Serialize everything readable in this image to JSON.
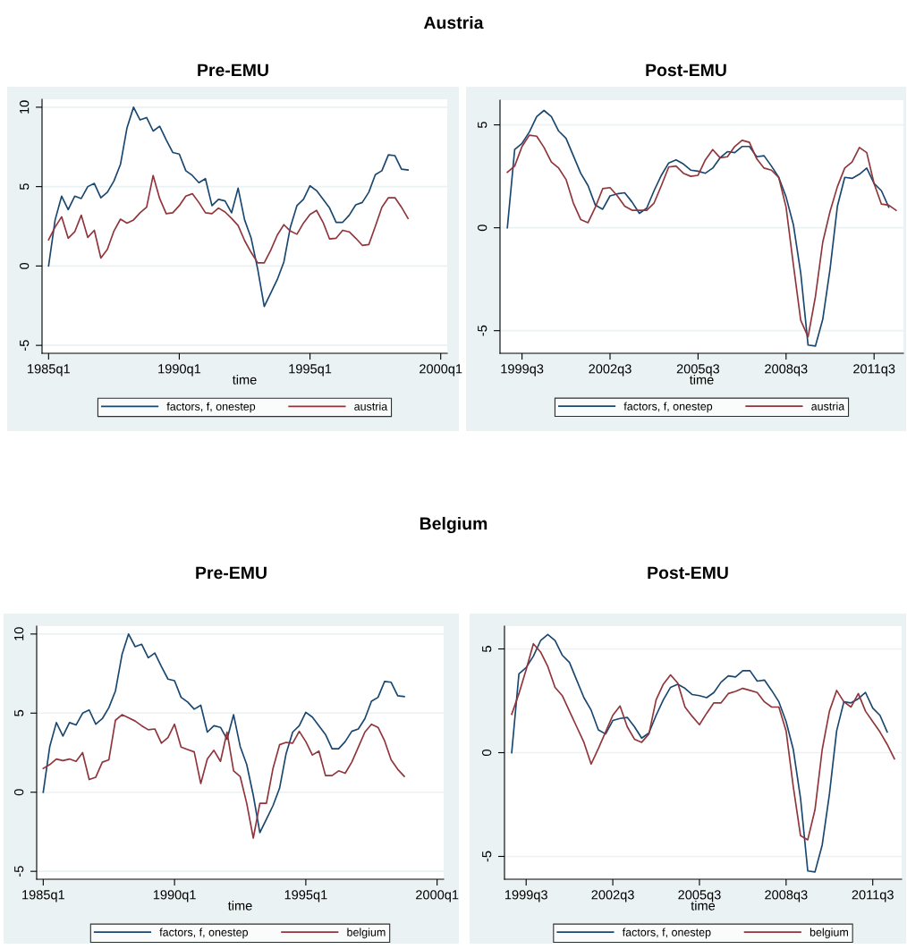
{
  "chart_data": [
    {
      "type": "line",
      "title": "Pre-EMU",
      "annotations": [
        "Austria"
      ],
      "xlabel": "time",
      "grid": "y",
      "legend": "bottom",
      "xlim": [
        "1984-10",
        "2000-04"
      ],
      "xticks": [
        {
          "value": "1985-01",
          "label": "1985q1"
        },
        {
          "value": "1990-01",
          "label": "1990q1"
        },
        {
          "value": "1995-01",
          "label": "1995q1"
        },
        {
          "value": "2000-01",
          "label": "2000q1"
        }
      ],
      "ylim": [
        -5.5,
        10.5
      ],
      "yticks": [
        -5,
        0,
        5,
        10
      ],
      "x": [
        "1985-01",
        "1985-04",
        "1985-07",
        "1985-10",
        "1986-01",
        "1986-04",
        "1986-07",
        "1986-10",
        "1987-01",
        "1987-04",
        "1987-07",
        "1987-10",
        "1988-01",
        "1988-04",
        "1988-07",
        "1988-10",
        "1989-01",
        "1989-04",
        "1989-07",
        "1989-10",
        "1990-01",
        "1990-04",
        "1990-07",
        "1990-10",
        "1991-01",
        "1991-04",
        "1991-07",
        "1991-10",
        "1992-01",
        "1992-04",
        "1992-07",
        "1992-10",
        "1993-01",
        "1993-04",
        "1993-07",
        "1993-10",
        "1994-01",
        "1994-04",
        "1994-07",
        "1994-10",
        "1995-01",
        "1995-04",
        "1995-07",
        "1995-10",
        "1996-01",
        "1996-04",
        "1996-07",
        "1996-10",
        "1997-01",
        "1997-04",
        "1997-07",
        "1997-10",
        "1998-01",
        "1998-04",
        "1998-07",
        "1998-10"
      ],
      "series": [
        {
          "name": "factors, f, onestep",
          "color": "#1a476f",
          "values": [
            0,
            2.9,
            4.4,
            3.55,
            4.4,
            4.25,
            5.0,
            5.2,
            4.3,
            4.65,
            5.35,
            6.4,
            8.7,
            10.0,
            9.2,
            9.35,
            8.5,
            8.8,
            7.95,
            7.15,
            7.05,
            6.0,
            5.7,
            5.25,
            5.5,
            3.8,
            4.2,
            4.1,
            3.35,
            4.9,
            2.9,
            1.75,
            -0.2,
            -2.55,
            -1.7,
            -0.85,
            0.25,
            2.45,
            3.8,
            4.2,
            5.05,
            4.75,
            4.2,
            3.65,
            2.75,
            2.75,
            3.2,
            3.85,
            4.0,
            4.65,
            5.75,
            6.0,
            7.0,
            6.95,
            6.1,
            6.05
          ]
        },
        {
          "name": "austria",
          "color": "#90353b",
          "values": [
            1.65,
            2.45,
            3.1,
            1.75,
            2.15,
            3.2,
            1.8,
            2.25,
            0.5,
            1.05,
            2.2,
            2.95,
            2.7,
            2.9,
            3.35,
            3.7,
            5.7,
            4.25,
            3.3,
            3.35,
            3.8,
            4.4,
            4.55,
            4.0,
            3.35,
            3.3,
            3.65,
            3.4,
            3.0,
            2.55,
            1.6,
            0.85,
            0.2,
            0.2,
            1.0,
            1.95,
            2.6,
            2.2,
            2.0,
            2.7,
            3.25,
            3.5,
            2.75,
            1.7,
            1.75,
            2.25,
            2.15,
            1.75,
            1.3,
            1.35,
            2.5,
            3.7,
            4.3,
            4.3,
            3.7,
            3.0
          ]
        }
      ]
    },
    {
      "type": "line",
      "title": "Post-EMU",
      "xlabel": "time",
      "grid": "y",
      "legend": "bottom",
      "xlim": [
        "1998-10",
        "2012-07"
      ],
      "xticks": [
        {
          "value": "1999-07",
          "label": "1999q3"
        },
        {
          "value": "2002-07",
          "label": "2002q3"
        },
        {
          "value": "2005-07",
          "label": "2005q3"
        },
        {
          "value": "2008-07",
          "label": "2008q3"
        },
        {
          "value": "2011-07",
          "label": "2011q3"
        }
      ],
      "ylim": [
        -6.1,
        6.2
      ],
      "yticks": [
        -5,
        0,
        5
      ],
      "x": [
        "1999-01",
        "1999-04",
        "1999-07",
        "1999-10",
        "2000-01",
        "2000-04",
        "2000-07",
        "2000-10",
        "2001-01",
        "2001-04",
        "2001-07",
        "2001-10",
        "2002-01",
        "2002-04",
        "2002-07",
        "2002-10",
        "2003-01",
        "2003-04",
        "2003-07",
        "2003-10",
        "2004-01",
        "2004-04",
        "2004-07",
        "2004-10",
        "2005-01",
        "2005-04",
        "2005-07",
        "2005-10",
        "2006-01",
        "2006-04",
        "2006-07",
        "2006-10",
        "2007-01",
        "2007-04",
        "2007-07",
        "2007-10",
        "2008-01",
        "2008-04",
        "2008-07",
        "2008-10",
        "2009-01",
        "2009-04",
        "2009-07",
        "2009-10",
        "2010-01",
        "2010-04",
        "2010-07",
        "2010-10",
        "2011-01",
        "2011-04",
        "2011-07",
        "2011-10",
        "2012-01",
        "2012-04"
      ],
      "series": [
        {
          "name": "factors, f, onestep",
          "color": "#1a476f",
          "values": [
            0,
            3.8,
            4.1,
            4.65,
            5.4,
            5.7,
            5.4,
            4.7,
            4.35,
            3.5,
            2.65,
            2.05,
            1.1,
            0.9,
            1.55,
            1.65,
            1.7,
            1.25,
            0.7,
            0.95,
            1.8,
            2.55,
            3.15,
            3.3,
            3.1,
            2.8,
            2.75,
            2.65,
            2.9,
            3.4,
            3.7,
            3.65,
            3.95,
            3.95,
            3.45,
            3.5,
            3.0,
            2.45,
            1.5,
            0.15,
            -2.2,
            -5.7,
            -5.75,
            -4.45,
            -2.0,
            1.05,
            2.45,
            2.4,
            2.6,
            2.9,
            2.15,
            1.8,
            1.0,
            null
          ]
        },
        {
          "name": "austria",
          "color": "#90353b",
          "values": [
            2.7,
            3.0,
            3.95,
            4.5,
            4.45,
            3.9,
            3.2,
            2.9,
            2.35,
            1.2,
            0.4,
            0.25,
            1.0,
            1.9,
            1.95,
            1.55,
            1.05,
            0.85,
            0.85,
            0.85,
            1.2,
            2.05,
            2.95,
            3.0,
            2.65,
            2.5,
            2.55,
            3.3,
            3.8,
            3.4,
            3.45,
            3.95,
            4.25,
            4.15,
            3.35,
            2.9,
            2.8,
            2.45,
            1.0,
            -1.8,
            -4.5,
            -5.3,
            -3.35,
            -0.7,
            0.8,
            2.0,
            2.9,
            3.2,
            3.9,
            3.65,
            2.15,
            1.15,
            1.1,
            0.85
          ]
        }
      ]
    },
    {
      "type": "line",
      "title": "Pre-EMU",
      "annotations": [
        "Belgium"
      ],
      "xlabel": "time",
      "grid": "y",
      "legend": "bottom",
      "xlim": [
        "1984-10",
        "2000-04"
      ],
      "xticks": [
        {
          "value": "1985-01",
          "label": "1985q1"
        },
        {
          "value": "1990-01",
          "label": "1990q1"
        },
        {
          "value": "1995-01",
          "label": "1995q1"
        },
        {
          "value": "2000-01",
          "label": "2000q1"
        }
      ],
      "ylim": [
        -5.5,
        10.5
      ],
      "yticks": [
        -5,
        0,
        5,
        10
      ],
      "x": [
        "1985-01",
        "1985-04",
        "1985-07",
        "1985-10",
        "1986-01",
        "1986-04",
        "1986-07",
        "1986-10",
        "1987-01",
        "1987-04",
        "1987-07",
        "1987-10",
        "1988-01",
        "1988-04",
        "1988-07",
        "1988-10",
        "1989-01",
        "1989-04",
        "1989-07",
        "1989-10",
        "1990-01",
        "1990-04",
        "1990-07",
        "1990-10",
        "1991-01",
        "1991-04",
        "1991-07",
        "1991-10",
        "1992-01",
        "1992-04",
        "1992-07",
        "1992-10",
        "1993-01",
        "1993-04",
        "1993-07",
        "1993-10",
        "1994-01",
        "1994-04",
        "1994-07",
        "1994-10",
        "1995-01",
        "1995-04",
        "1995-07",
        "1995-10",
        "1996-01",
        "1996-04",
        "1996-07",
        "1996-10",
        "1997-01",
        "1997-04",
        "1997-07",
        "1997-10",
        "1998-01",
        "1998-04",
        "1998-07",
        "1998-10"
      ],
      "series": [
        {
          "name": "factors, f, onestep",
          "color": "#1a476f",
          "values": [
            0,
            2.9,
            4.4,
            3.55,
            4.4,
            4.25,
            5.0,
            5.2,
            4.3,
            4.65,
            5.35,
            6.4,
            8.7,
            10.0,
            9.2,
            9.35,
            8.5,
            8.8,
            7.95,
            7.15,
            7.05,
            6.0,
            5.7,
            5.25,
            5.5,
            3.8,
            4.2,
            4.1,
            3.35,
            4.9,
            2.9,
            1.75,
            -0.2,
            -2.55,
            -1.7,
            -0.85,
            0.25,
            2.45,
            3.8,
            4.2,
            5.05,
            4.75,
            4.2,
            3.65,
            2.75,
            2.75,
            3.2,
            3.85,
            4.0,
            4.65,
            5.75,
            6.0,
            7.0,
            6.95,
            6.1,
            6.05
          ]
        },
        {
          "name": "belgium",
          "color": "#90353b",
          "values": [
            1.5,
            1.75,
            2.1,
            2.0,
            2.1,
            1.95,
            2.5,
            0.8,
            0.95,
            1.9,
            2.05,
            4.55,
            4.9,
            4.7,
            4.5,
            4.2,
            3.95,
            4.0,
            3.1,
            3.45,
            4.3,
            2.85,
            2.7,
            2.55,
            0.55,
            2.1,
            2.65,
            1.95,
            3.8,
            1.35,
            1.0,
            -0.7,
            -2.9,
            -0.7,
            -0.7,
            1.5,
            3.0,
            3.15,
            3.1,
            3.85,
            3.2,
            2.35,
            2.6,
            1.05,
            1.05,
            1.35,
            1.2,
            1.9,
            2.85,
            3.8,
            4.3,
            4.1,
            3.25,
            2.05,
            1.45,
            1.0
          ]
        }
      ]
    },
    {
      "type": "line",
      "title": "Post-EMU",
      "xlabel": "time",
      "grid": "y",
      "legend": "bottom",
      "xlim": [
        "1998-10",
        "2012-07"
      ],
      "xticks": [
        {
          "value": "1999-07",
          "label": "1999q3"
        },
        {
          "value": "2002-07",
          "label": "2002q3"
        },
        {
          "value": "2005-07",
          "label": "2005q3"
        },
        {
          "value": "2008-07",
          "label": "2008q3"
        },
        {
          "value": "2011-07",
          "label": "2011q3"
        }
      ],
      "ylim": [
        -6.1,
        6.1
      ],
      "yticks": [
        -5,
        0,
        5
      ],
      "x": [
        "1999-01",
        "1999-04",
        "1999-07",
        "1999-10",
        "2000-01",
        "2000-04",
        "2000-07",
        "2000-10",
        "2001-01",
        "2001-04",
        "2001-07",
        "2001-10",
        "2002-01",
        "2002-04",
        "2002-07",
        "2002-10",
        "2003-01",
        "2003-04",
        "2003-07",
        "2003-10",
        "2004-01",
        "2004-04",
        "2004-07",
        "2004-10",
        "2005-01",
        "2005-04",
        "2005-07",
        "2005-10",
        "2006-01",
        "2006-04",
        "2006-07",
        "2006-10",
        "2007-01",
        "2007-04",
        "2007-07",
        "2007-10",
        "2008-01",
        "2008-04",
        "2008-07",
        "2008-10",
        "2009-01",
        "2009-04",
        "2009-07",
        "2009-10",
        "2010-01",
        "2010-04",
        "2010-07",
        "2010-10",
        "2011-01",
        "2011-04",
        "2011-07",
        "2011-10",
        "2012-01",
        "2012-04"
      ],
      "series": [
        {
          "name": "factors, f, onestep",
          "color": "#1a476f",
          "values": [
            0,
            3.8,
            4.1,
            4.65,
            5.4,
            5.7,
            5.4,
            4.7,
            4.35,
            3.5,
            2.65,
            2.05,
            1.1,
            0.9,
            1.55,
            1.65,
            1.7,
            1.25,
            0.7,
            0.95,
            1.8,
            2.55,
            3.15,
            3.3,
            3.1,
            2.8,
            2.75,
            2.65,
            2.9,
            3.4,
            3.7,
            3.65,
            3.95,
            3.95,
            3.45,
            3.5,
            3.0,
            2.45,
            1.5,
            0.15,
            -2.2,
            -5.7,
            -5.75,
            -4.45,
            -2.0,
            1.05,
            2.45,
            2.4,
            2.6,
            2.9,
            2.15,
            1.8,
            1.0,
            null
          ]
        },
        {
          "name": "belgium",
          "color": "#90353b",
          "values": [
            1.85,
            2.85,
            4.0,
            5.25,
            4.85,
            4.15,
            3.15,
            2.75,
            2.0,
            1.25,
            0.5,
            -0.55,
            0.2,
            1.0,
            1.8,
            2.25,
            1.25,
            0.65,
            0.5,
            0.9,
            2.55,
            3.3,
            3.75,
            3.35,
            2.2,
            1.75,
            1.35,
            1.9,
            2.4,
            2.4,
            2.85,
            2.95,
            3.1,
            3.0,
            2.9,
            2.45,
            2.2,
            2.2,
            1.05,
            -1.65,
            -4.0,
            -4.2,
            -2.75,
            0.15,
            2.0,
            3.0,
            2.45,
            2.2,
            2.85,
            2.0,
            1.5,
            1.0,
            0.4,
            -0.3
          ]
        }
      ]
    }
  ]
}
